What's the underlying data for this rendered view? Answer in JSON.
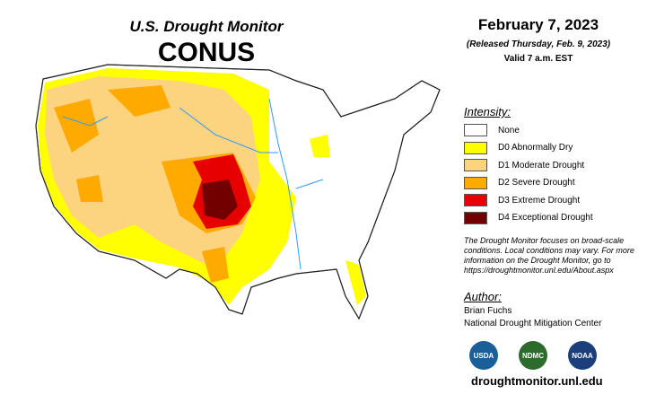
{
  "header": {
    "title": "U.S. Drought Monitor",
    "subtitle": "CONUS"
  },
  "date": {
    "date": "February 7, 2023",
    "released": "(Released Thursday, Feb. 9, 2023)",
    "valid": "Valid 7 a.m. EST"
  },
  "legend": {
    "title": "Intensity:",
    "items": [
      {
        "label": "None",
        "color": "#ffffff"
      },
      {
        "label": "D0 Abnormally Dry",
        "color": "#ffff00"
      },
      {
        "label": "D1 Moderate Drought",
        "color": "#fcd37f"
      },
      {
        "label": "D2 Severe Drought",
        "color": "#ffaa00"
      },
      {
        "label": "D3 Extreme Drought",
        "color": "#e60000"
      },
      {
        "label": "D4 Exceptional Drought",
        "color": "#730000"
      }
    ]
  },
  "note": "The Drought Monitor focuses on broad-scale conditions. Local conditions may vary. For more information on the Drought Monitor, go to https://droughtmonitor.unl.edu/About.aspx",
  "author": {
    "heading": "Author:",
    "name": "Brian Fuchs",
    "org": "National Drought Mitigation Center"
  },
  "logos": [
    "USDA",
    "NDMC",
    "NOAA"
  ],
  "url": "droughtmonitor.unl.edu"
}
